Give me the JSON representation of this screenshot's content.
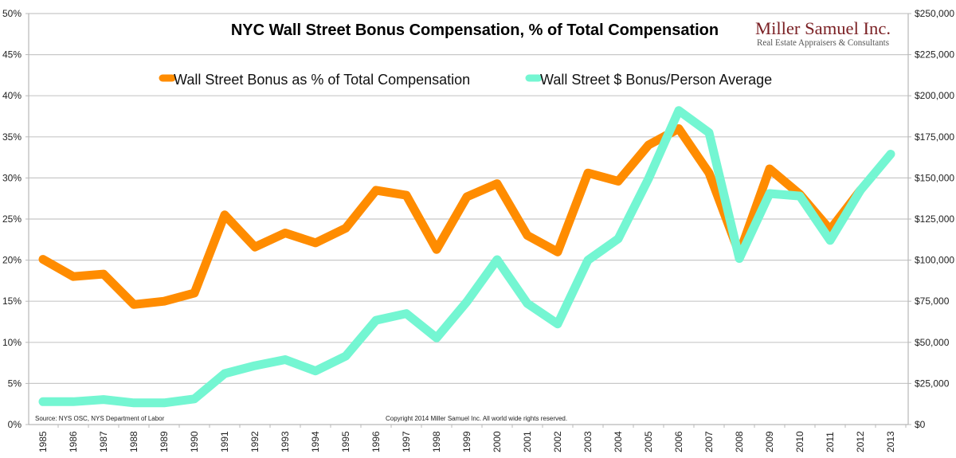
{
  "chart_data": {
    "type": "line",
    "title": "NYC Wall Street Bonus Compensation, % of Total Compensation",
    "x": [
      1985,
      1986,
      1987,
      1988,
      1989,
      1990,
      1991,
      1992,
      1993,
      1994,
      1995,
      1996,
      1997,
      1998,
      1999,
      2000,
      2001,
      2002,
      2003,
      2004,
      2005,
      2006,
      2007,
      2008,
      2009,
      2010,
      2011,
      2012,
      2013
    ],
    "x_tick_labels": [
      "1985",
      "1986",
      "1987",
      "1988",
      "1989",
      "1990",
      "1991",
      "1992",
      "1993",
      "1994",
      "1995",
      "1996",
      "1997",
      "1998",
      "1999",
      "2000",
      "2001",
      "2002",
      "2003",
      "2004",
      "2005",
      "2006",
      "2007",
      "2008",
      "2009",
      "2010",
      "2011",
      "2012",
      "2013"
    ],
    "left_axis": {
      "ylim": [
        0,
        50
      ],
      "tick_labels": [
        "0%",
        "5%",
        "10%",
        "15%",
        "20%",
        "25%",
        "30%",
        "35%",
        "40%",
        "45%",
        "50%"
      ]
    },
    "right_axis": {
      "ylim": [
        0,
        250000
      ],
      "tick_labels": [
        "$0",
        "$25,000",
        "$50,000",
        "$75,000",
        "$100,000",
        "$125,000",
        "$150,000",
        "$175,000",
        "$200,000",
        "$225,000",
        "$250,000"
      ]
    },
    "grid": true,
    "legend_placement": "top-center",
    "series": [
      {
        "name": "Wall Street Bonus as % of Total Compensation",
        "axis": "left",
        "color": "#ff8c00",
        "values": [
          20.1,
          18.0,
          18.3,
          14.6,
          15.0,
          16.0,
          25.5,
          21.6,
          23.3,
          22.1,
          23.9,
          28.5,
          27.9,
          21.3,
          27.7,
          29.3,
          23.0,
          21.0,
          30.6,
          29.6,
          34.0,
          36.0,
          30.6,
          20.8,
          31.1,
          28.0,
          23.7,
          28.5,
          null
        ]
      },
      {
        "name": "Wall Street $ Bonus/Person Average",
        "axis": "right",
        "color": "#74f6d2",
        "values": [
          13900,
          13900,
          15200,
          13200,
          13200,
          15600,
          31000,
          35800,
          39500,
          32600,
          41600,
          63400,
          67500,
          52700,
          74700,
          100300,
          73600,
          61200,
          100000,
          113000,
          149500,
          191000,
          177500,
          101000,
          140500,
          139000,
          112000,
          142500,
          164500
        ]
      }
    ],
    "annotations": {
      "source": "Source: NYS OSC, NYS Department of Labor",
      "copyright": "Copyright 2014 Miller Samuel Inc.  All world wide rights reserved."
    }
  },
  "logo": {
    "name": "Miller Samuel Inc.",
    "tagline": "Real Estate Appraisers & Consultants"
  }
}
